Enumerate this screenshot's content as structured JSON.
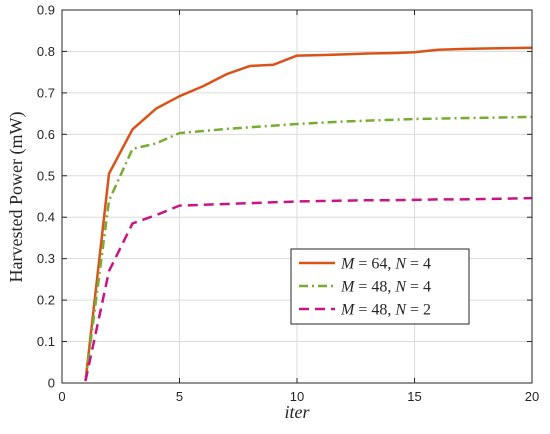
{
  "chart_data": {
    "type": "line",
    "xlabel": "iter",
    "ylabel": "Harvested Power (mW)",
    "xlim": [
      0,
      20
    ],
    "ylim": [
      0,
      0.9
    ],
    "xticks": [
      0,
      5,
      10,
      15,
      20
    ],
    "yticks": [
      0,
      0.1,
      0.2,
      0.3,
      0.4,
      0.5,
      0.6,
      0.7,
      0.8,
      0.9
    ],
    "xtick_labels": [
      "0",
      "5",
      "10",
      "15",
      "20"
    ],
    "ytick_labels": [
      "0",
      "0.1",
      "0.2",
      "0.3",
      "0.4",
      "0.5",
      "0.6",
      "0.7",
      "0.8",
      "0.9"
    ],
    "grid": true,
    "legend_position": "center-right",
    "x": [
      1,
      2,
      3,
      4,
      5,
      6,
      7,
      8,
      9,
      10,
      11,
      12,
      13,
      14,
      15,
      16,
      17,
      18,
      19,
      20
    ],
    "series": [
      {
        "name": "M = 64, N = 4",
        "name_math": {
          "a_var": "M",
          "a_val": "64",
          "b_var": "N",
          "b_val": "4"
        },
        "color": "#D95319",
        "dash": "solid",
        "values": [
          0.005,
          0.505,
          0.612,
          0.662,
          0.692,
          0.716,
          0.745,
          0.765,
          0.768,
          0.79,
          0.791,
          0.793,
          0.795,
          0.796,
          0.798,
          0.804,
          0.806,
          0.807,
          0.808,
          0.809
        ]
      },
      {
        "name": "M = 48, N = 4",
        "name_math": {
          "a_var": "M",
          "a_val": "48",
          "b_var": "N",
          "b_val": "4"
        },
        "color": "#77AC30",
        "dash": "dashdot",
        "values": [
          0.005,
          0.44,
          0.565,
          0.578,
          0.603,
          0.608,
          0.613,
          0.617,
          0.621,
          0.625,
          0.628,
          0.631,
          0.633,
          0.635,
          0.637,
          0.638,
          0.639,
          0.64,
          0.641,
          0.642
        ]
      },
      {
        "name": "M = 48, N = 2",
        "name_math": {
          "a_var": "M",
          "a_val": "48",
          "b_var": "N",
          "b_val": "2"
        },
        "color": "#C71585",
        "dash": "dashed",
        "values": [
          0.005,
          0.27,
          0.385,
          0.405,
          0.428,
          0.43,
          0.432,
          0.434,
          0.436,
          0.438,
          0.439,
          0.44,
          0.441,
          0.441,
          0.442,
          0.443,
          0.443,
          0.444,
          0.445,
          0.446
        ]
      }
    ]
  }
}
